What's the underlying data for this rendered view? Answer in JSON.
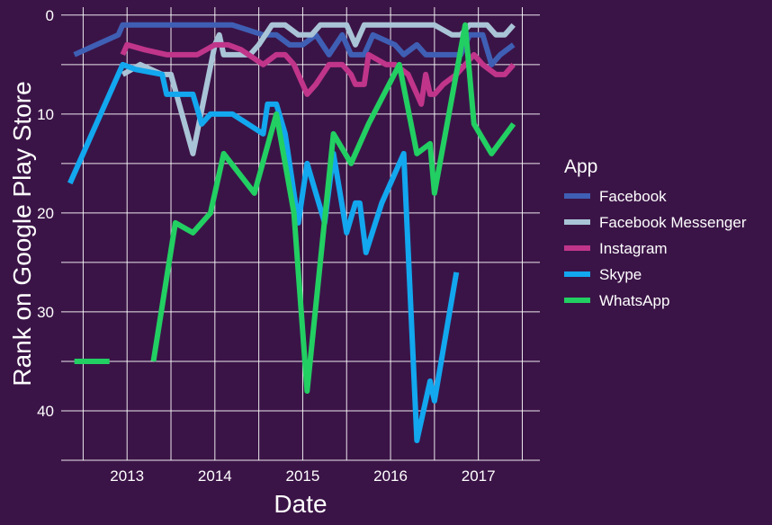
{
  "chart_data": {
    "type": "line",
    "title": "",
    "xlabel": "Date",
    "ylabel": "Rank on Google Play Store",
    "xlim": [
      2012.25,
      2017.7
    ],
    "ylim": [
      45,
      -0.8
    ],
    "y_reversed": true,
    "x_ticks": [
      2013,
      2014,
      2015,
      2016,
      2017
    ],
    "y_ticks": [
      0,
      10,
      20,
      30,
      40
    ],
    "x_tick_labels": [
      "2013",
      "2014",
      "2015",
      "2016",
      "2017"
    ],
    "y_tick_labels": [
      "0",
      "10",
      "20",
      "30",
      "40"
    ],
    "grid": true,
    "legend": {
      "title": "App",
      "position": "right"
    },
    "series": [
      {
        "name": "Facebook",
        "color": "#3f5fb5",
        "segments": [
          [
            [
              2012.4,
              4
            ],
            [
              2012.9,
              2
            ],
            [
              2012.95,
              1
            ],
            [
              2013.5,
              1
            ],
            [
              2014.0,
              1
            ],
            [
              2014.2,
              1
            ],
            [
              2014.55,
              2
            ],
            [
              2014.7,
              2
            ],
            [
              2014.85,
              3
            ],
            [
              2015.0,
              3
            ],
            [
              2015.15,
              2
            ],
            [
              2015.3,
              4
            ],
            [
              2015.45,
              2
            ],
            [
              2015.55,
              4
            ],
            [
              2015.7,
              4
            ],
            [
              2015.8,
              2
            ],
            [
              2016.05,
              3
            ],
            [
              2016.15,
              4
            ],
            [
              2016.3,
              3
            ],
            [
              2016.4,
              4
            ],
            [
              2016.55,
              4
            ],
            [
              2016.7,
              4
            ],
            [
              2016.8,
              4
            ],
            [
              2016.9,
              2
            ],
            [
              2017.0,
              2
            ],
            [
              2017.05,
              2
            ],
            [
              2017.15,
              5
            ],
            [
              2017.25,
              4
            ],
            [
              2017.4,
              3
            ]
          ]
        ]
      },
      {
        "name": "Facebook Messenger",
        "color": "#a9c4d6",
        "segments": [
          [
            [
              2012.95,
              6
            ],
            [
              2013.15,
              5
            ],
            [
              2013.4,
              6
            ],
            [
              2013.5,
              6
            ],
            [
              2013.75,
              14
            ],
            [
              2014.0,
              3
            ],
            [
              2014.05,
              2
            ],
            [
              2014.1,
              4
            ],
            [
              2014.4,
              4
            ],
            [
              2014.5,
              3
            ],
            [
              2014.65,
              1
            ],
            [
              2014.8,
              1
            ],
            [
              2014.95,
              2
            ],
            [
              2015.1,
              2
            ],
            [
              2015.2,
              1
            ],
            [
              2015.5,
              1
            ],
            [
              2015.6,
              3
            ],
            [
              2015.7,
              1
            ],
            [
              2016.0,
              1
            ],
            [
              2016.3,
              1
            ],
            [
              2016.5,
              1
            ],
            [
              2016.7,
              2
            ],
            [
              2016.8,
              2
            ],
            [
              2016.9,
              1
            ],
            [
              2017.0,
              1
            ],
            [
              2017.1,
              1
            ],
            [
              2017.2,
              2
            ],
            [
              2017.3,
              2
            ],
            [
              2017.4,
              1
            ]
          ]
        ]
      },
      {
        "name": "Instagram",
        "color": "#c0358a",
        "segments": [
          [
            [
              2012.95,
              4
            ],
            [
              2013.0,
              3
            ],
            [
              2013.2,
              3.5
            ],
            [
              2013.45,
              4
            ],
            [
              2013.6,
              4
            ],
            [
              2013.8,
              4
            ],
            [
              2014.0,
              3
            ],
            [
              2014.15,
              3
            ],
            [
              2014.3,
              3.5
            ],
            [
              2014.55,
              5
            ],
            [
              2014.7,
              4
            ],
            [
              2014.8,
              4
            ],
            [
              2014.9,
              5
            ],
            [
              2015.05,
              8
            ],
            [
              2015.15,
              7
            ],
            [
              2015.3,
              5
            ],
            [
              2015.45,
              5
            ],
            [
              2015.55,
              6
            ],
            [
              2015.6,
              7
            ],
            [
              2015.7,
              7
            ],
            [
              2015.75,
              4
            ],
            [
              2015.95,
              5
            ],
            [
              2016.05,
              5
            ],
            [
              2016.2,
              6
            ],
            [
              2016.35,
              9
            ],
            [
              2016.4,
              6
            ],
            [
              2016.45,
              8
            ],
            [
              2016.5,
              8
            ],
            [
              2016.6,
              7
            ],
            [
              2016.75,
              6
            ],
            [
              2016.85,
              5
            ],
            [
              2016.95,
              4
            ],
            [
              2017.05,
              5
            ],
            [
              2017.2,
              6
            ],
            [
              2017.3,
              6
            ],
            [
              2017.4,
              5
            ]
          ]
        ]
      },
      {
        "name": "Skype",
        "color": "#12a7ee",
        "segments": [
          [
            [
              2012.35,
              17
            ],
            [
              2012.95,
              5
            ],
            [
              2013.1,
              5.5
            ],
            [
              2013.4,
              6
            ],
            [
              2013.45,
              8
            ],
            [
              2013.6,
              8
            ],
            [
              2013.75,
              8
            ],
            [
              2013.85,
              11
            ],
            [
              2013.95,
              10
            ],
            [
              2014.2,
              10
            ],
            [
              2014.55,
              12
            ],
            [
              2014.6,
              9
            ],
            [
              2014.7,
              9
            ],
            [
              2014.8,
              12
            ],
            [
              2014.95,
              21
            ],
            [
              2015.05,
              15
            ],
            [
              2015.25,
              21
            ],
            [
              2015.35,
              14
            ],
            [
              2015.5,
              22
            ],
            [
              2015.6,
              19
            ],
            [
              2015.65,
              19
            ],
            [
              2015.72,
              24
            ],
            [
              2015.9,
              19
            ],
            [
              2016.15,
              14
            ],
            [
              2016.3,
              43
            ],
            [
              2016.45,
              37
            ],
            [
              2016.5,
              39
            ],
            [
              2016.75,
              26
            ]
          ]
        ]
      },
      {
        "name": "WhatsApp",
        "color": "#22cf62",
        "segments": [
          [
            [
              2012.4,
              35
            ],
            [
              2012.8,
              35
            ]
          ],
          [
            [
              2013.3,
              35
            ],
            [
              2013.55,
              21
            ],
            [
              2013.75,
              22
            ],
            [
              2013.95,
              20
            ],
            [
              2014.1,
              14
            ],
            [
              2014.45,
              18
            ],
            [
              2014.7,
              10
            ],
            [
              2014.9,
              20
            ],
            [
              2015.05,
              38
            ],
            [
              2015.35,
              12
            ],
            [
              2015.55,
              15
            ],
            [
              2015.75,
              11
            ],
            [
              2016.1,
              5
            ],
            [
              2016.3,
              14
            ],
            [
              2016.45,
              13
            ],
            [
              2016.5,
              18
            ],
            [
              2016.85,
              1
            ],
            [
              2016.95,
              11
            ],
            [
              2017.15,
              14
            ],
            [
              2017.4,
              11
            ]
          ]
        ]
      }
    ]
  }
}
